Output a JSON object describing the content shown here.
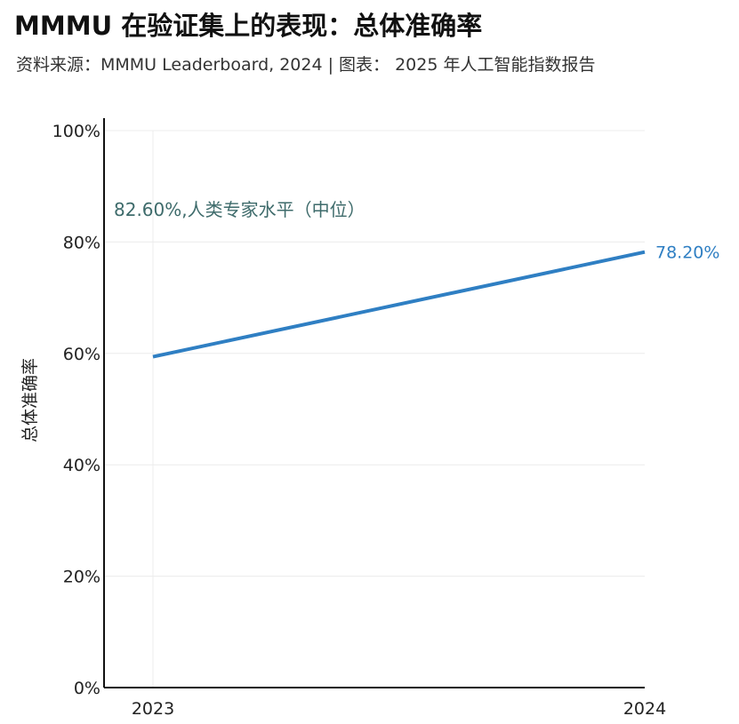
{
  "header": {
    "title": "MMMU 在验证集上的表现：总体准确率",
    "subtitle": "资料来源：MMMU Leaderboard, 2024 | 图表： 2025 年人工智能指数报告"
  },
  "colors": {
    "series": "#2f7fc3",
    "annotation": "#3e6b6b",
    "grid": "#ececec",
    "axis": "#111111"
  },
  "chart_data": {
    "type": "line",
    "title": "MMMU 在验证集上的表现：总体准确率",
    "xlabel": "",
    "ylabel": "总体准确率",
    "categories": [
      "2023",
      "2024"
    ],
    "ylim": [
      0,
      100
    ],
    "yticks": [
      0,
      20,
      40,
      60,
      80,
      100
    ],
    "ytick_labels": [
      "0%",
      "20%",
      "40%",
      "60%",
      "80%",
      "100%"
    ],
    "grid": true,
    "series": [
      {
        "name": "总体准确率",
        "values": [
          59.4,
          78.2
        ],
        "end_label": "78.20%"
      }
    ],
    "annotations": [
      {
        "text": "82.60%,人类专家水平（中位）",
        "value": 82.6
      }
    ]
  }
}
